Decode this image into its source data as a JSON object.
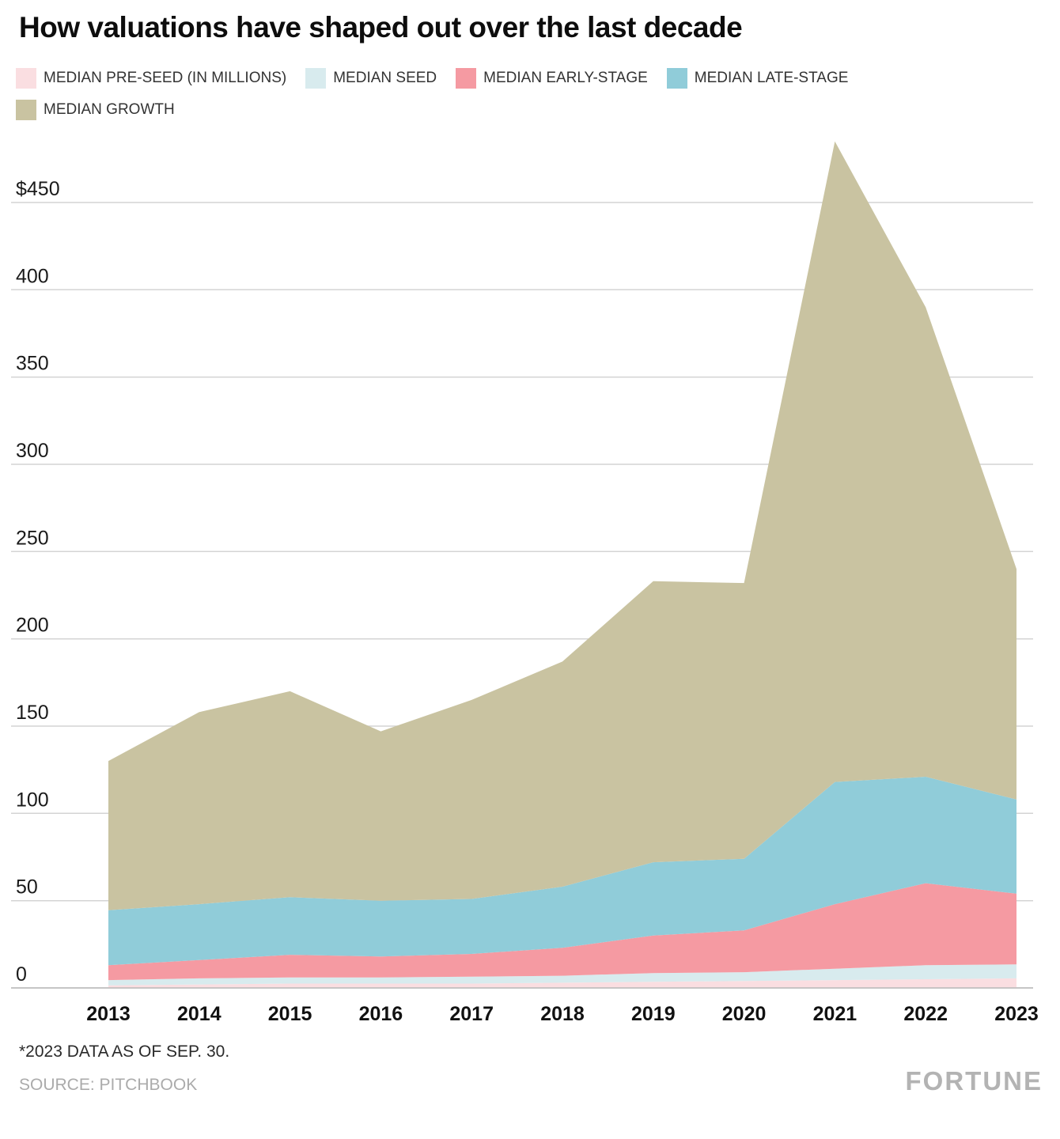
{
  "title": "How valuations have shaped out over the last decade",
  "legend": {
    "items": [
      {
        "label": "MEDIAN PRE-SEED (IN MILLIONS)",
        "color": "#fadee1",
        "row": 1
      },
      {
        "label": "MEDIAN SEED",
        "color": "#d8ebee",
        "row": 1
      },
      {
        "label": "MEDIAN EARLY-STAGE",
        "color": "#f59aa2",
        "row": 1
      },
      {
        "label": "MEDIAN LATE-STAGE",
        "color": "#90ccd9",
        "row": 1
      },
      {
        "label": "MEDIAN GROWTH",
        "color": "#c9c3a1",
        "row": 2
      }
    ]
  },
  "chart_data": {
    "type": "area",
    "stacked": true,
    "title": "How valuations have shaped out over the last decade",
    "xlabel": "",
    "ylabel": "",
    "grid": true,
    "legend_position": "top",
    "ylim": [
      0,
      490
    ],
    "categories": [
      "2013",
      "2014",
      "2015",
      "2016",
      "2017",
      "2018",
      "2019",
      "2020",
      "2021",
      "2022",
      "2023"
    ],
    "series": [
      {
        "name": "MEDIAN PRE-SEED (IN MILLIONS)",
        "color": "#fadee1",
        "values": [
          1.5,
          2,
          2.5,
          2.5,
          2.5,
          3,
          3.5,
          4,
          4.5,
          5,
          5.5
        ]
      },
      {
        "name": "MEDIAN SEED",
        "color": "#d8ebee",
        "values": [
          3,
          3.5,
          3.5,
          3.5,
          4,
          4,
          5,
          5,
          6.5,
          8,
          8
        ]
      },
      {
        "name": "MEDIAN EARLY-STAGE",
        "color": "#f59aa2",
        "values": [
          8.5,
          10.5,
          13,
          12,
          13,
          16,
          21.5,
          24,
          37,
          47,
          40.5
        ]
      },
      {
        "name": "MEDIAN LATE-STAGE",
        "color": "#90ccd9",
        "values": [
          31.5,
          32,
          33,
          32,
          31.5,
          35,
          42,
          41,
          70,
          61,
          54
        ]
      },
      {
        "name": "MEDIAN GROWTH",
        "color": "#c9c3a1",
        "values": [
          85.5,
          110,
          118,
          97,
          114,
          129,
          161,
          158,
          367,
          269,
          132
        ]
      }
    ],
    "stacked_totals": [
      130,
      158,
      170,
      147,
      165,
      187,
      233,
      232,
      485,
      390,
      240
    ],
    "y_ticks": [
      {
        "value": 0,
        "label": "0"
      },
      {
        "value": 50,
        "label": "50"
      },
      {
        "value": 100,
        "label": "100"
      },
      {
        "value": 150,
        "label": "150"
      },
      {
        "value": 200,
        "label": "200"
      },
      {
        "value": 250,
        "label": "250"
      },
      {
        "value": 300,
        "label": "300"
      },
      {
        "value": 350,
        "label": "350"
      },
      {
        "value": 400,
        "label": "400"
      },
      {
        "value": 450,
        "label": "$450"
      }
    ]
  },
  "footnote": "*2023 DATA AS OF SEP. 30.",
  "source": "SOURCE: PITCHBOOK",
  "brand": "FORTUNE"
}
